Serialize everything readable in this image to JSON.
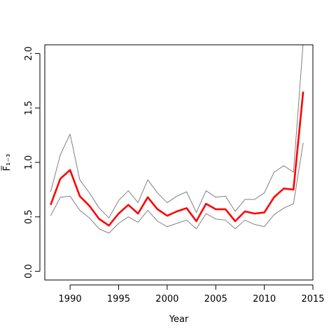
{
  "chart_data": {
    "type": "line",
    "xlabel": "Year",
    "ylabel": "F̅₁₋₃",
    "xlim": [
      1987.4,
      2015.0
    ],
    "ylim": [
      -0.08,
      2.08
    ],
    "x_ticks": [
      1990,
      1995,
      2000,
      2005,
      2010,
      2015
    ],
    "y_ticks": [
      0.0,
      0.5,
      1.0,
      1.5,
      2.0
    ],
    "x_tick_labels": [
      "1990",
      "1995",
      "2000",
      "2005",
      "2010",
      "2015"
    ],
    "y_tick_labels": [
      "0.0",
      "0.5",
      "1.0",
      "1.5",
      "2.0"
    ],
    "grid": false,
    "x": [
      1988,
      1989,
      1990,
      1991,
      1992,
      1993,
      1994,
      1995,
      1996,
      1997,
      1998,
      1999,
      2000,
      2001,
      2002,
      2003,
      2004,
      2005,
      2006,
      2007,
      2008,
      2009,
      2010,
      2011,
      2012,
      2013,
      2014
    ],
    "series": [
      {
        "role": "upper",
        "color": "#808080",
        "values": [
          0.73,
          1.07,
          1.26,
          0.84,
          0.72,
          0.58,
          0.49,
          0.65,
          0.74,
          0.63,
          0.84,
          0.72,
          0.63,
          0.69,
          0.73,
          0.54,
          0.74,
          0.68,
          0.69,
          0.55,
          0.66,
          0.66,
          0.72,
          0.91,
          0.97,
          0.91,
          2.1
        ]
      },
      {
        "role": "estimate",
        "color": "#ff0000",
        "values": [
          0.61,
          0.85,
          0.93,
          0.69,
          0.6,
          0.48,
          0.42,
          0.53,
          0.61,
          0.53,
          0.68,
          0.57,
          0.51,
          0.55,
          0.58,
          0.46,
          0.62,
          0.57,
          0.57,
          0.46,
          0.55,
          0.53,
          0.54,
          0.68,
          0.76,
          0.75,
          1.65
        ]
      },
      {
        "role": "lower",
        "color": "#808080",
        "values": [
          0.51,
          0.68,
          0.69,
          0.56,
          0.49,
          0.39,
          0.35,
          0.44,
          0.5,
          0.45,
          0.56,
          0.46,
          0.41,
          0.44,
          0.47,
          0.39,
          0.53,
          0.48,
          0.47,
          0.39,
          0.47,
          0.43,
          0.41,
          0.52,
          0.58,
          0.62,
          1.18
        ]
      }
    ]
  }
}
